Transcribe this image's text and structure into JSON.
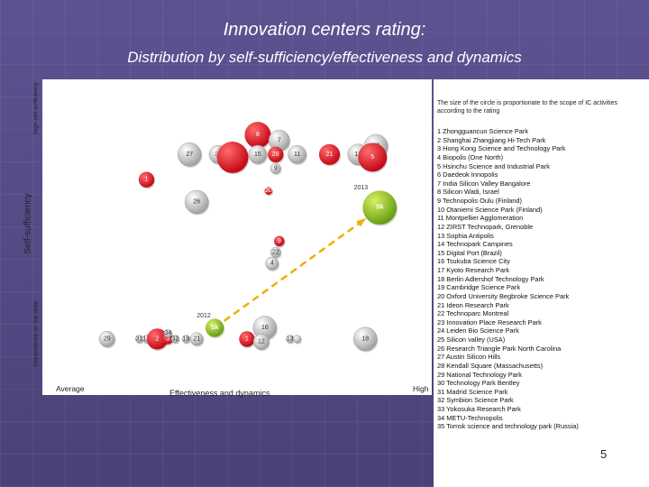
{
  "title": "Innovation centers rating:",
  "subtitle": "Distribution by self-sufficiency/effectiveness and dynamics",
  "page_number": "5",
  "note": "The size of the circle is proportionate to the scope of IC activities according to the rating",
  "legend_items": [
    "1 Zhongguancun Science Park",
    "2 Shanghai Zhangjiang Hi-Tech Park",
    "3 Hong Kong Science and Technology Park",
    "4 Biopolis (One North)",
    "5 Hsinchu Science and Industrial Park",
    "6 Daedeok Innopolis",
    "7 India Silicon Valley Bangalore",
    "8 Silicon Wadi, Israel",
    "9 Technopolis Oulu (Finland)",
    "10 Otaniemi Science Park (Finland)",
    "11 Montpellier Agglomeration",
    "12 ZIRST Technopark, Grenoble",
    "13 Sophia Antipolis",
    "14 Technopark Campines",
    "15 Digital Port (Brazil)",
    "16 Tsukuba Science City",
    "17 Kyoto Research Park",
    "18 Berlin Adlershof Technology Park",
    "19 Cambridge Science Park",
    "20 Oxford University Begbroke Science Park",
    "21 Ideon Research Park",
    "22 Technoparc Montreal",
    "23 Innovation Place Research Park",
    "24 Leiden Bio Science Park",
    "25 Silicon valley (USA)",
    "26 Research Triangle Park North Carolina",
    "27 Austin Silicon Hills",
    "28 Kendall Square (Massachusetts)",
    "29 National Technology Park",
    "30 Technology Park Bentley",
    "31 Madrid Science Park",
    "32 Symbion Science Park",
    "33 Yokosuka Research Park",
    "34 METU-Technopolis",
    "35 Tomsk science and technology park (Russia)"
  ],
  "chart_data": {
    "type": "scatter",
    "title": "Innovation centers rating:",
    "subtitle": "Distribution by self-sufficiency/effectiveness and dynamics",
    "xlabel": "Effectiveness and dynamics",
    "ylabel": "Self-sufficiency",
    "x_tick_labels": [
      "Average",
      "High"
    ],
    "y_tick_labels": [
      "Dependence on the state",
      "High self-sufficiency"
    ],
    "xlim": [
      0,
      100
    ],
    "ylim": [
      0,
      100
    ],
    "colors": {
      "red": "#e0101c",
      "grey": "#c8c8c8",
      "green": "#8fbe1c",
      "arrow": "#f0b000"
    },
    "points": [
      {
        "label": "8",
        "x": 55,
        "y": 84,
        "size": 10,
        "color": "red"
      },
      {
        "label": "7",
        "x": 61,
        "y": 82,
        "size": 8,
        "color": "grey"
      },
      {
        "label": "27",
        "x": 36,
        "y": 77,
        "size": 9,
        "color": "grey"
      },
      {
        "label": "30",
        "x": 44,
        "y": 77,
        "size": 7,
        "color": "grey"
      },
      {
        "label": "10",
        "x": 46,
        "y": 77,
        "size": 7,
        "color": "grey"
      },
      {
        "label": "",
        "x": 48,
        "y": 76,
        "size": 12,
        "color": "red"
      },
      {
        "label": "15",
        "x": 55,
        "y": 77,
        "size": 7,
        "color": "grey"
      },
      {
        "label": "28",
        "x": 60,
        "y": 77,
        "size": 6,
        "color": "red"
      },
      {
        "label": "11",
        "x": 66,
        "y": 77,
        "size": 7,
        "color": "grey"
      },
      {
        "label": "21",
        "x": 75,
        "y": 77,
        "size": 8,
        "color": "red"
      },
      {
        "label": "9",
        "x": 60,
        "y": 72,
        "size": 4,
        "color": "grey"
      },
      {
        "label": "33",
        "x": 88,
        "y": 80,
        "size": 9,
        "color": "grey"
      },
      {
        "label": "17",
        "x": 83,
        "y": 77,
        "size": 8,
        "color": "grey"
      },
      {
        "label": "5",
        "x": 87,
        "y": 76,
        "size": 11,
        "color": "red"
      },
      {
        "label": "1",
        "x": 24,
        "y": 68,
        "size": 6,
        "color": "red"
      },
      {
        "label": "20",
        "x": 58,
        "y": 64,
        "size": 3,
        "color": "red"
      },
      {
        "label": "26",
        "x": 38,
        "y": 60,
        "size": 9,
        "color": "grey"
      },
      {
        "label": "2013",
        "x": 89,
        "y": 58,
        "size": 13,
        "color": "green"
      },
      {
        "label": "9",
        "x": 61,
        "y": 46,
        "size": 4,
        "color": "red"
      },
      {
        "label": "22",
        "x": 60,
        "y": 42,
        "size": 4,
        "color": "grey"
      },
      {
        "label": "4",
        "x": 59,
        "y": 38,
        "size": 5,
        "color": "grey"
      },
      {
        "label": "2012",
        "x": 43,
        "y": 15,
        "size": 7,
        "color": "green"
      },
      {
        "label": "16",
        "x": 57,
        "y": 15,
        "size": 9,
        "color": "grey"
      },
      {
        "label": "29",
        "x": 13,
        "y": 11,
        "size": 6,
        "color": "grey"
      },
      {
        "label": "31",
        "x": 22,
        "y": 11,
        "size": 3,
        "color": "grey"
      },
      {
        "label": "14",
        "x": 24,
        "y": 11,
        "size": 3,
        "color": "grey"
      },
      {
        "label": "2",
        "x": 27,
        "y": 11,
        "size": 8,
        "color": "red"
      },
      {
        "label": "3",
        "x": 30,
        "y": 11,
        "size": 4,
        "color": "red"
      },
      {
        "label": "34",
        "x": 30,
        "y": 13,
        "size": 3,
        "color": "grey"
      },
      {
        "label": "32",
        "x": 32,
        "y": 11,
        "size": 3,
        "color": "grey"
      },
      {
        "label": "19",
        "x": 35,
        "y": 11,
        "size": 3,
        "color": "grey"
      },
      {
        "label": "21",
        "x": 38,
        "y": 11,
        "size": 5,
        "color": "grey"
      },
      {
        "label": "1",
        "x": 52,
        "y": 11,
        "size": 6,
        "color": "red"
      },
      {
        "label": "12",
        "x": 56,
        "y": 10,
        "size": 6,
        "color": "grey"
      },
      {
        "label": "13",
        "x": 64,
        "y": 11,
        "size": 3,
        "color": "grey"
      },
      {
        "label": "",
        "x": 66,
        "y": 11,
        "size": 3,
        "color": "grey"
      },
      {
        "label": "18",
        "x": 85,
        "y": 11,
        "size": 9,
        "color": "grey"
      }
    ],
    "trend_arrow": {
      "from": [
        43,
        15
      ],
      "to": [
        89,
        58
      ],
      "labels": [
        "2012",
        "2013"
      ]
    }
  }
}
